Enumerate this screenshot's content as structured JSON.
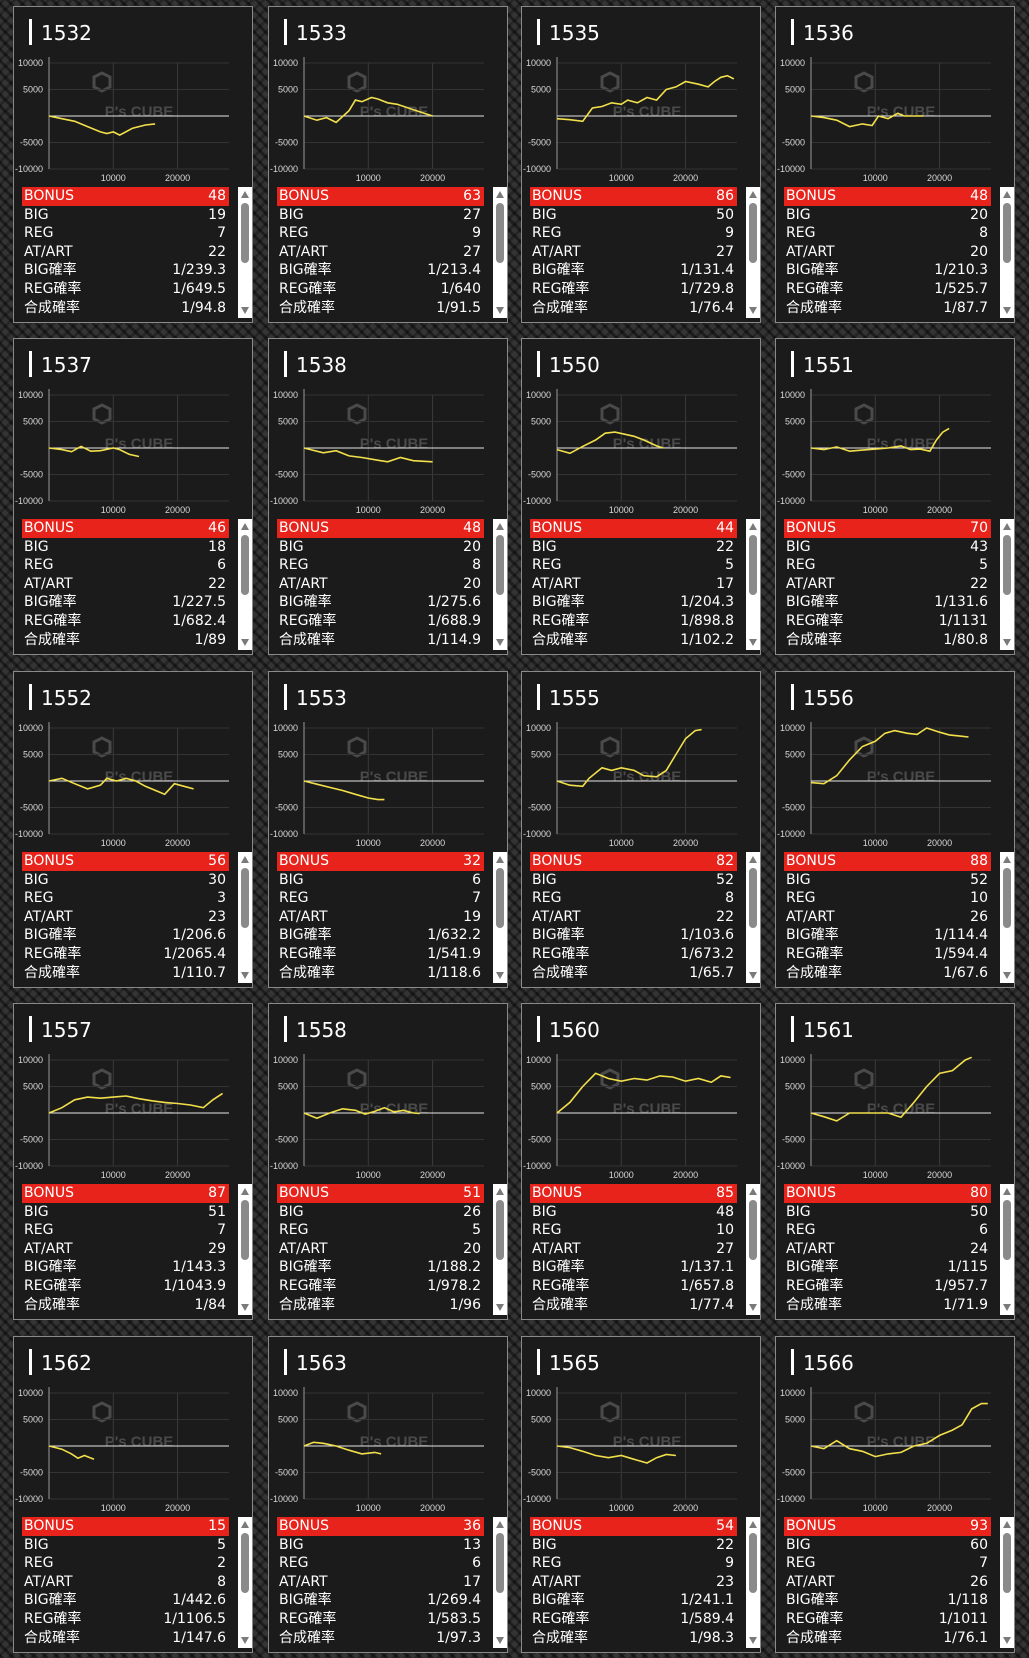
{
  "labels": {
    "bonus": "BONUS",
    "big": "BIG",
    "reg": "REG",
    "atart": "AT/ART",
    "big_prob": "BIG確率",
    "reg_prob": "REG確率",
    "total_prob": "合成確率",
    "watermark": "P's CUBE"
  },
  "colors": {
    "line": "#f2e04b",
    "bonus_bar": "#e8231b",
    "card_bg": "#1b1b1b"
  },
  "axes": {
    "y_ticks": [
      "10000",
      "5000",
      "-5000",
      "-10000"
    ],
    "x_ticks": [
      "10000",
      "20000"
    ]
  },
  "machines": [
    {
      "id": "1532",
      "bonus": "48",
      "big": "19",
      "reg": "7",
      "atart": "22",
      "big_prob": "1/239.3",
      "reg_prob": "1/649.5",
      "total_prob": "1/94.8",
      "graph": [
        [
          0,
          0
        ],
        [
          2000,
          -500
        ],
        [
          4000,
          -1000
        ],
        [
          6000,
          -2000
        ],
        [
          8000,
          -3000
        ],
        [
          9000,
          -3300
        ],
        [
          10000,
          -3000
        ],
        [
          11000,
          -3600
        ],
        [
          13000,
          -2300
        ],
        [
          15000,
          -1700
        ],
        [
          16500,
          -1500
        ]
      ]
    },
    {
      "id": "1533",
      "bonus": "63",
      "big": "27",
      "reg": "9",
      "atart": "27",
      "big_prob": "1/213.4",
      "reg_prob": "1/640",
      "total_prob": "1/91.5",
      "graph": [
        [
          0,
          0
        ],
        [
          2000,
          -800
        ],
        [
          3500,
          -300
        ],
        [
          5000,
          -1200
        ],
        [
          7000,
          1000
        ],
        [
          8000,
          3000
        ],
        [
          9000,
          2700
        ],
        [
          10500,
          3500
        ],
        [
          11500,
          3200
        ],
        [
          13000,
          2500
        ],
        [
          14500,
          2200
        ],
        [
          16000,
          1600
        ],
        [
          17500,
          1000
        ],
        [
          20000,
          0
        ]
      ]
    },
    {
      "id": "1535",
      "bonus": "86",
      "big": "50",
      "reg": "9",
      "atart": "27",
      "big_prob": "1/131.4",
      "reg_prob": "1/729.8",
      "total_prob": "1/76.4",
      "graph": [
        [
          0,
          -500
        ],
        [
          2000,
          -700
        ],
        [
          4000,
          -1000
        ],
        [
          5500,
          1500
        ],
        [
          7000,
          1800
        ],
        [
          8500,
          2500
        ],
        [
          10000,
          2200
        ],
        [
          11000,
          3000
        ],
        [
          12500,
          2500
        ],
        [
          14000,
          3500
        ],
        [
          15500,
          3000
        ],
        [
          17000,
          5000
        ],
        [
          18500,
          5500
        ],
        [
          20000,
          6500
        ],
        [
          22000,
          6000
        ],
        [
          23500,
          5500
        ],
        [
          24500,
          6500
        ],
        [
          25500,
          7300
        ],
        [
          26500,
          7600
        ],
        [
          27500,
          7000
        ]
      ]
    },
    {
      "id": "1536",
      "bonus": "48",
      "big": "20",
      "reg": "8",
      "atart": "20",
      "big_prob": "1/210.3",
      "reg_prob": "1/525.7",
      "total_prob": "1/87.7",
      "graph": [
        [
          0,
          0
        ],
        [
          2000,
          -300
        ],
        [
          4000,
          -800
        ],
        [
          6000,
          -2000
        ],
        [
          8000,
          -1500
        ],
        [
          9500,
          -1800
        ],
        [
          10500,
          0
        ],
        [
          12000,
          -500
        ],
        [
          13500,
          500
        ],
        [
          14500,
          0
        ],
        [
          16000,
          0
        ],
        [
          17500,
          0
        ]
      ]
    },
    {
      "id": "1537",
      "bonus": "46",
      "big": "18",
      "reg": "6",
      "atart": "22",
      "big_prob": "1/227.5",
      "reg_prob": "1/682.4",
      "total_prob": "1/89",
      "graph": [
        [
          0,
          0
        ],
        [
          2000,
          -300
        ],
        [
          3500,
          -700
        ],
        [
          5000,
          300
        ],
        [
          6500,
          -600
        ],
        [
          8000,
          -500
        ],
        [
          10000,
          0
        ],
        [
          11000,
          -300
        ],
        [
          12500,
          -1200
        ],
        [
          14000,
          -1600
        ]
      ]
    },
    {
      "id": "1538",
      "bonus": "48",
      "big": "20",
      "reg": "8",
      "atart": "20",
      "big_prob": "1/275.6",
      "reg_prob": "1/688.9",
      "total_prob": "1/114.9",
      "graph": [
        [
          0,
          0
        ],
        [
          3000,
          -900
        ],
        [
          5000,
          -500
        ],
        [
          7000,
          -1500
        ],
        [
          9000,
          -1800
        ],
        [
          11000,
          -2200
        ],
        [
          13000,
          -2600
        ],
        [
          15000,
          -1800
        ],
        [
          17000,
          -2400
        ],
        [
          20000,
          -2600
        ]
      ]
    },
    {
      "id": "1550",
      "bonus": "44",
      "big": "22",
      "reg": "5",
      "atart": "17",
      "big_prob": "1/204.3",
      "reg_prob": "1/898.8",
      "total_prob": "1/102.2",
      "graph": [
        [
          0,
          -300
        ],
        [
          2000,
          -1000
        ],
        [
          4000,
          300
        ],
        [
          6000,
          1500
        ],
        [
          7500,
          2800
        ],
        [
          9000,
          3000
        ],
        [
          10500,
          2600
        ],
        [
          12000,
          2200
        ],
        [
          13500,
          1500
        ],
        [
          15500,
          400
        ],
        [
          16500,
          0
        ]
      ]
    },
    {
      "id": "1551",
      "bonus": "70",
      "big": "43",
      "reg": "5",
      "atart": "22",
      "big_prob": "1/131.6",
      "reg_prob": "1/1131",
      "total_prob": "1/80.8",
      "graph": [
        [
          0,
          0
        ],
        [
          2000,
          -300
        ],
        [
          4000,
          200
        ],
        [
          6000,
          -600
        ],
        [
          8000,
          -400
        ],
        [
          10000,
          -200
        ],
        [
          12000,
          0
        ],
        [
          14000,
          400
        ],
        [
          15500,
          -300
        ],
        [
          17000,
          -200
        ],
        [
          18500,
          -600
        ],
        [
          19500,
          1500
        ],
        [
          20500,
          3000
        ],
        [
          21500,
          3700
        ]
      ]
    },
    {
      "id": "1552",
      "bonus": "56",
      "big": "30",
      "reg": "3",
      "atart": "23",
      "big_prob": "1/206.6",
      "reg_prob": "1/2065.4",
      "total_prob": "1/110.7",
      "graph": [
        [
          0,
          0
        ],
        [
          2000,
          500
        ],
        [
          4000,
          -500
        ],
        [
          6000,
          -1500
        ],
        [
          8000,
          -800
        ],
        [
          9000,
          500
        ],
        [
          10500,
          0
        ],
        [
          12000,
          500
        ],
        [
          13500,
          0
        ],
        [
          15000,
          -1000
        ],
        [
          17000,
          -2000
        ],
        [
          18000,
          -2500
        ],
        [
          19500,
          -500
        ],
        [
          21000,
          -1000
        ],
        [
          22500,
          -1500
        ]
      ]
    },
    {
      "id": "1553",
      "bonus": "32",
      "big": "6",
      "reg": "7",
      "atart": "19",
      "big_prob": "1/632.2",
      "reg_prob": "1/541.9",
      "total_prob": "1/118.6",
      "graph": [
        [
          0,
          0
        ],
        [
          2000,
          -600
        ],
        [
          4000,
          -1200
        ],
        [
          6000,
          -1800
        ],
        [
          8000,
          -2500
        ],
        [
          10000,
          -3200
        ],
        [
          11500,
          -3500
        ],
        [
          12500,
          -3500
        ]
      ]
    },
    {
      "id": "1555",
      "bonus": "82",
      "big": "52",
      "reg": "8",
      "atart": "22",
      "big_prob": "1/103.6",
      "reg_prob": "1/673.2",
      "total_prob": "1/65.7",
      "graph": [
        [
          0,
          0
        ],
        [
          2000,
          -800
        ],
        [
          4000,
          -1000
        ],
        [
          5000,
          500
        ],
        [
          7000,
          2500
        ],
        [
          8500,
          2000
        ],
        [
          10000,
          2500
        ],
        [
          12000,
          2000
        ],
        [
          13500,
          1000
        ],
        [
          15500,
          800
        ],
        [
          17000,
          2000
        ],
        [
          18500,
          5000
        ],
        [
          20000,
          8000
        ],
        [
          21500,
          9500
        ],
        [
          22500,
          9700
        ]
      ]
    },
    {
      "id": "1556",
      "bonus": "88",
      "big": "52",
      "reg": "10",
      "atart": "26",
      "big_prob": "1/114.4",
      "reg_prob": "1/594.4",
      "total_prob": "1/67.6",
      "graph": [
        [
          0,
          -300
        ],
        [
          2000,
          -500
        ],
        [
          4000,
          1000
        ],
        [
          6000,
          4000
        ],
        [
          8000,
          6500
        ],
        [
          10000,
          7500
        ],
        [
          11500,
          9000
        ],
        [
          13000,
          9500
        ],
        [
          15000,
          9000
        ],
        [
          16500,
          8800
        ],
        [
          18000,
          10000
        ],
        [
          20000,
          9200
        ],
        [
          21500,
          8700
        ],
        [
          23000,
          8500
        ],
        [
          24500,
          8300
        ]
      ]
    },
    {
      "id": "1557",
      "bonus": "87",
      "big": "51",
      "reg": "7",
      "atart": "29",
      "big_prob": "1/143.3",
      "reg_prob": "1/1043.9",
      "total_prob": "1/84",
      "graph": [
        [
          0,
          0
        ],
        [
          2000,
          1000
        ],
        [
          4000,
          2500
        ],
        [
          6000,
          3000
        ],
        [
          8000,
          2800
        ],
        [
          10000,
          3000
        ],
        [
          12000,
          3200
        ],
        [
          14000,
          2700
        ],
        [
          16000,
          2300
        ],
        [
          18000,
          2000
        ],
        [
          20000,
          1800
        ],
        [
          22000,
          1500
        ],
        [
          24000,
          1000
        ],
        [
          25500,
          2500
        ],
        [
          27000,
          3700
        ]
      ]
    },
    {
      "id": "1558",
      "bonus": "51",
      "big": "26",
      "reg": "5",
      "atart": "20",
      "big_prob": "1/188.2",
      "reg_prob": "1/978.2",
      "total_prob": "1/96",
      "graph": [
        [
          0,
          0
        ],
        [
          2000,
          -1000
        ],
        [
          4000,
          0
        ],
        [
          6000,
          800
        ],
        [
          8000,
          500
        ],
        [
          9500,
          -200
        ],
        [
          11000,
          300
        ],
        [
          12500,
          1000
        ],
        [
          14000,
          200
        ],
        [
          15500,
          500
        ],
        [
          17000,
          0
        ],
        [
          18000,
          -100
        ]
      ]
    },
    {
      "id": "1560",
      "bonus": "85",
      "big": "48",
      "reg": "10",
      "atart": "27",
      "big_prob": "1/137.1",
      "reg_prob": "1/657.8",
      "total_prob": "1/77.4",
      "graph": [
        [
          0,
          0
        ],
        [
          2000,
          2000
        ],
        [
          4000,
          5000
        ],
        [
          6000,
          7500
        ],
        [
          8000,
          6500
        ],
        [
          10000,
          6000
        ],
        [
          12000,
          6500
        ],
        [
          14000,
          6200
        ],
        [
          16000,
          7000
        ],
        [
          18000,
          6800
        ],
        [
          20000,
          6000
        ],
        [
          22000,
          6500
        ],
        [
          24000,
          5800
        ],
        [
          25500,
          7000
        ],
        [
          27000,
          6700
        ]
      ]
    },
    {
      "id": "1561",
      "bonus": "80",
      "big": "50",
      "reg": "6",
      "atart": "24",
      "big_prob": "1/115",
      "reg_prob": "1/957.7",
      "total_prob": "1/71.9",
      "graph": [
        [
          0,
          0
        ],
        [
          2000,
          -700
        ],
        [
          4000,
          -1500
        ],
        [
          6000,
          0
        ],
        [
          8000,
          0
        ],
        [
          10000,
          0
        ],
        [
          12000,
          0
        ],
        [
          14000,
          -800
        ],
        [
          16000,
          2000
        ],
        [
          18000,
          5000
        ],
        [
          20000,
          7500
        ],
        [
          22000,
          8000
        ],
        [
          24000,
          10000
        ],
        [
          25000,
          10500
        ]
      ]
    },
    {
      "id": "1562",
      "bonus": "15",
      "big": "5",
      "reg": "2",
      "atart": "8",
      "big_prob": "1/442.6",
      "reg_prob": "1/1106.5",
      "total_prob": "1/147.6",
      "graph": [
        [
          0,
          0
        ],
        [
          2000,
          -600
        ],
        [
          3500,
          -1500
        ],
        [
          4500,
          -2300
        ],
        [
          5500,
          -1800
        ],
        [
          7000,
          -2500
        ]
      ]
    },
    {
      "id": "1563",
      "bonus": "36",
      "big": "13",
      "reg": "6",
      "atart": "17",
      "big_prob": "1/269.4",
      "reg_prob": "1/583.5",
      "total_prob": "1/97.3",
      "graph": [
        [
          0,
          0
        ],
        [
          1500,
          700
        ],
        [
          3000,
          500
        ],
        [
          5000,
          0
        ],
        [
          7000,
          -800
        ],
        [
          9000,
          -1500
        ],
        [
          11000,
          -1200
        ],
        [
          12000,
          -1500
        ]
      ]
    },
    {
      "id": "1565",
      "bonus": "54",
      "big": "22",
      "reg": "9",
      "atart": "23",
      "big_prob": "1/241.1",
      "reg_prob": "1/589.4",
      "total_prob": "1/98.3",
      "graph": [
        [
          0,
          0
        ],
        [
          2000,
          -300
        ],
        [
          4000,
          -1000
        ],
        [
          6000,
          -1800
        ],
        [
          8000,
          -2200
        ],
        [
          10000,
          -1800
        ],
        [
          12000,
          -2500
        ],
        [
          14000,
          -3200
        ],
        [
          15500,
          -2200
        ],
        [
          17000,
          -1600
        ],
        [
          18500,
          -1800
        ]
      ]
    },
    {
      "id": "1566",
      "bonus": "93",
      "big": "60",
      "reg": "7",
      "atart": "26",
      "big_prob": "1/118",
      "reg_prob": "1/1011",
      "total_prob": "1/76.1",
      "graph": [
        [
          0,
          0
        ],
        [
          2000,
          -500
        ],
        [
          4000,
          1000
        ],
        [
          6000,
          -500
        ],
        [
          8000,
          -1000
        ],
        [
          10000,
          -2000
        ],
        [
          12000,
          -1500
        ],
        [
          14000,
          -1200
        ],
        [
          16000,
          0
        ],
        [
          18000,
          500
        ],
        [
          20000,
          2000
        ],
        [
          22000,
          3000
        ],
        [
          23500,
          4000
        ],
        [
          25000,
          7000
        ],
        [
          26500,
          8000
        ],
        [
          27500,
          8000
        ]
      ]
    }
  ]
}
